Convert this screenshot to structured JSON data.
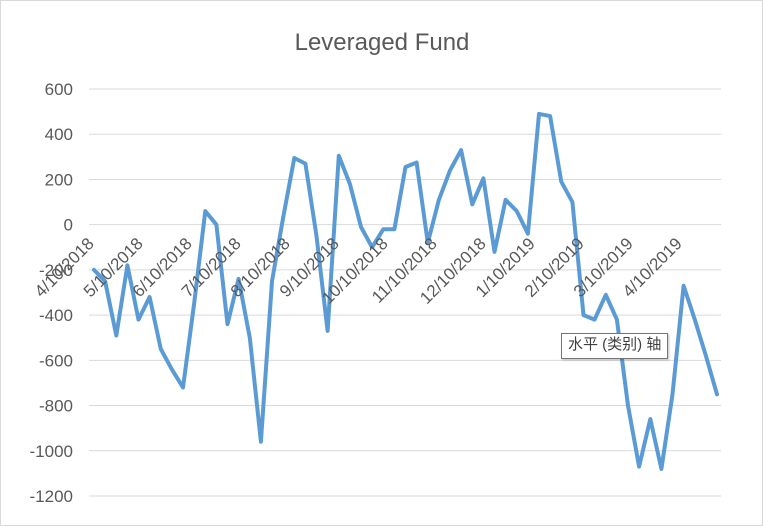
{
  "chart_data": {
    "type": "line",
    "title": "Leveraged Fund",
    "xlabel": "",
    "ylabel": "",
    "ylim": [
      -1200,
      600
    ],
    "y_ticks": [
      600,
      400,
      200,
      0,
      -200,
      -400,
      -600,
      -800,
      -1000,
      -1200
    ],
    "y_tick_labels": [
      "600",
      "400",
      "200",
      "0",
      "-200",
      "-400",
      "-600",
      "-800",
      "-1000",
      "-1200"
    ],
    "x_tick_labels": [
      "4/10/2018",
      "5/10/2018",
      "6/10/2018",
      "7/10/2018",
      "8/10/2018",
      "9/10/2018",
      "10/10/2018",
      "11/10/2018",
      "12/10/2018",
      "1/10/2019",
      "2/10/2019",
      "3/10/2019",
      "4/10/2019"
    ],
    "grid": true,
    "legend": "none",
    "series": [
      {
        "name": "Leveraged Fund",
        "color": "#5b9bd5",
        "values": [
          -200,
          -250,
          -490,
          -180,
          -420,
          -320,
          -550,
          -640,
          -720,
          -350,
          60,
          0,
          -440,
          -240,
          -500,
          -960,
          -250,
          30,
          295,
          270,
          -50,
          -470,
          305,
          180,
          -10,
          -100,
          -20,
          -20,
          255,
          275,
          -80,
          110,
          240,
          330,
          90,
          205,
          -120,
          110,
          60,
          -40,
          490,
          480,
          190,
          100,
          -400,
          -420,
          -310,
          -420,
          -800,
          -1070,
          -860,
          -1080,
          -750,
          -270,
          -420,
          -580,
          -750
        ]
      }
    ]
  },
  "ui": {
    "axis_tooltip": "水平 (类别) 轴"
  }
}
